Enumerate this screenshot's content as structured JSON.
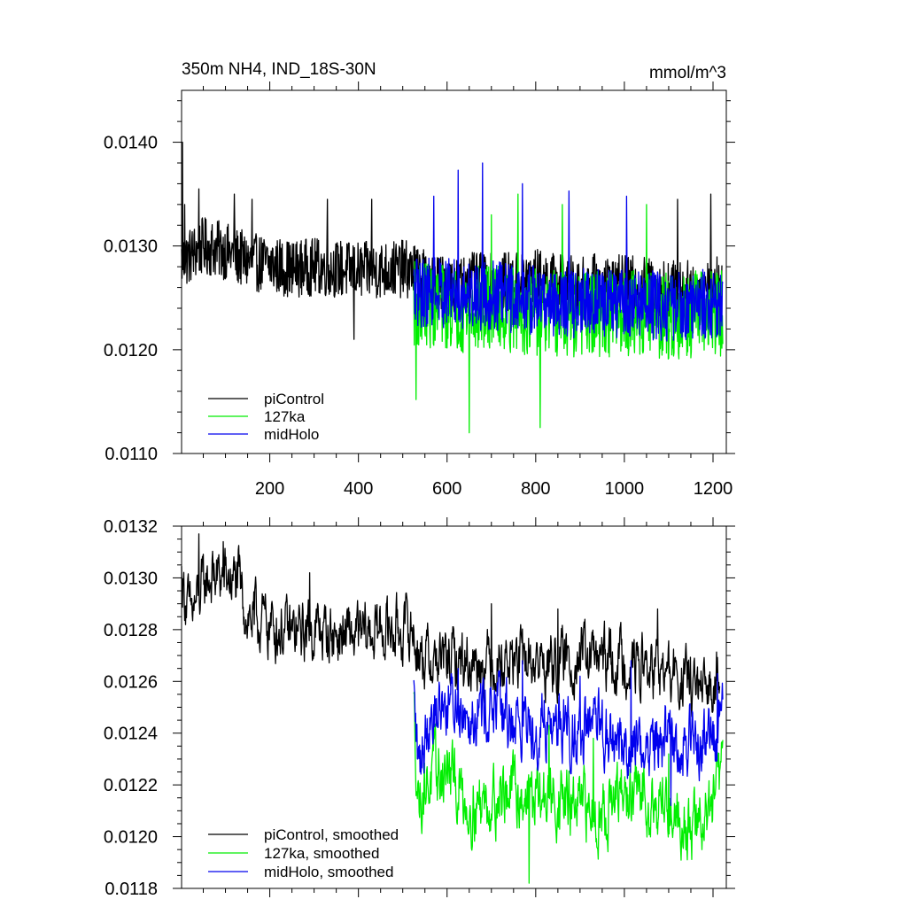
{
  "figure": {
    "title_left": "350m NH4, IND_18S-30N",
    "title_right": "mmol/m^3"
  },
  "colors": {
    "piControl": "#000000",
    "127ka": "#00ee00",
    "midHolo": "#0000ee"
  },
  "chart_data": [
    {
      "type": "line",
      "panel": "top",
      "xlim": [
        1,
        1230
      ],
      "ylim": [
        0.011,
        0.0145
      ],
      "x_ticks": [
        200,
        400,
        600,
        800,
        1000,
        1200
      ],
      "x_tick_labels": [
        "200",
        "400",
        "600",
        "800",
        "1000",
        "1200"
      ],
      "y_ticks": [
        0.011,
        0.012,
        0.013,
        0.014
      ],
      "y_tick_labels": [
        "0.0110",
        "0.0120",
        "0.0130",
        "0.0140"
      ],
      "grid": false,
      "legend_position": "bottom-left",
      "series": [
        {
          "name": "piControl",
          "key": "piControl",
          "x_range": [
            1,
            1220
          ],
          "points": [
            [
              1,
              0.01285
            ],
            [
              50,
              0.013
            ],
            [
              100,
              0.01295
            ],
            [
              150,
              0.01285
            ],
            [
              200,
              0.01282
            ],
            [
              250,
              0.01278
            ],
            [
              300,
              0.0128
            ],
            [
              350,
              0.01278
            ],
            [
              400,
              0.01276
            ],
            [
              450,
              0.01277
            ],
            [
              500,
              0.01278
            ],
            [
              525,
              0.01276
            ],
            [
              550,
              0.01268
            ],
            [
              600,
              0.01262
            ],
            [
              650,
              0.01266
            ],
            [
              700,
              0.01265
            ],
            [
              750,
              0.01266
            ],
            [
              800,
              0.0127
            ],
            [
              850,
              0.01265
            ],
            [
              900,
              0.01262
            ],
            [
              950,
              0.01266
            ],
            [
              1000,
              0.01263
            ],
            [
              1050,
              0.01262
            ],
            [
              1100,
              0.0126
            ],
            [
              1150,
              0.01258
            ],
            [
              1200,
              0.01262
            ],
            [
              1220,
              0.01263
            ]
          ],
          "noise": 0.00028,
          "spikes": [
            [
              3,
              0.014
            ],
            [
              8,
              0.0134
            ],
            [
              40,
              0.01355
            ],
            [
              120,
              0.0135
            ],
            [
              160,
              0.01345
            ],
            [
              250,
              0.01255
            ],
            [
              330,
              0.01345
            ],
            [
              390,
              0.0121
            ],
            [
              430,
              0.01345
            ],
            [
              1120,
              0.01345
            ],
            [
              1195,
              0.0135
            ]
          ]
        },
        {
          "name": "127ka",
          "key": "127ka",
          "x_range": [
            525,
            1222
          ],
          "points": [
            [
              525,
              0.01245
            ],
            [
              600,
              0.01242
            ],
            [
              650,
              0.01238
            ],
            [
              700,
              0.0124
            ],
            [
              800,
              0.01236
            ],
            [
              900,
              0.01232
            ],
            [
              1000,
              0.01236
            ],
            [
              1100,
              0.01232
            ],
            [
              1222,
              0.01236
            ]
          ],
          "noise": 0.00042,
          "spikes": [
            [
              530,
              0.01152
            ],
            [
              650,
              0.0112
            ],
            [
              760,
              0.01127
            ],
            [
              810,
              0.01125
            ],
            [
              860,
              0.0134
            ],
            [
              1050,
              0.0134
            ],
            [
              700,
              0.0133
            ],
            [
              760,
              0.0135
            ]
          ]
        },
        {
          "name": "midHolo",
          "key": "midHolo",
          "x_range": [
            525,
            1222
          ],
          "points": [
            [
              525,
              0.01255
            ],
            [
              600,
              0.01255
            ],
            [
              700,
              0.01252
            ],
            [
              800,
              0.01248
            ],
            [
              900,
              0.01245
            ],
            [
              1000,
              0.01245
            ],
            [
              1100,
              0.01242
            ],
            [
              1222,
              0.01245
            ]
          ],
          "noise": 0.00034,
          "spikes": [
            [
              570,
              0.01348
            ],
            [
              625,
              0.01373
            ],
            [
              680,
              0.0138
            ],
            [
              770,
              0.0136
            ],
            [
              875,
              0.01353
            ],
            [
              1005,
              0.01348
            ]
          ]
        }
      ],
      "legend": [
        "piControl",
        "127ka",
        "midHolo"
      ]
    },
    {
      "type": "line",
      "panel": "bottom",
      "xlim": [
        1,
        1230
      ],
      "ylim": [
        0.0118,
        0.0132
      ],
      "x_ticks": [
        200,
        400,
        600,
        800,
        1000,
        1200
      ],
      "y_ticks": [
        0.0118,
        0.012,
        0.0122,
        0.0124,
        0.0126,
        0.0128,
        0.013,
        0.0132
      ],
      "y_tick_labels": [
        "0.0118",
        "0.0120",
        "0.0122",
        "0.0124",
        "0.0126",
        "0.0128",
        "0.0130",
        "0.0132"
      ],
      "grid": false,
      "legend_position": "bottom-left",
      "series": [
        {
          "name": "piControl, smoothed",
          "key": "piControl",
          "x_range": [
            1,
            1215
          ],
          "points": [
            [
              1,
              0.013
            ],
            [
              20,
              0.01285
            ],
            [
              60,
              0.013
            ],
            [
              100,
              0.013
            ],
            [
              130,
              0.01298
            ],
            [
              150,
              0.01285
            ],
            [
              200,
              0.01282
            ],
            [
              250,
              0.01278
            ],
            [
              300,
              0.0128
            ],
            [
              350,
              0.01278
            ],
            [
              400,
              0.01277
            ],
            [
              450,
              0.0128
            ],
            [
              520,
              0.0128
            ],
            [
              540,
              0.0127
            ],
            [
              580,
              0.01268
            ],
            [
              650,
              0.01268
            ],
            [
              700,
              0.01268
            ],
            [
              760,
              0.01268
            ],
            [
              800,
              0.01267
            ],
            [
              850,
              0.01266
            ],
            [
              900,
              0.0127
            ],
            [
              950,
              0.01268
            ],
            [
              1000,
              0.01268
            ],
            [
              1050,
              0.01265
            ],
            [
              1100,
              0.01262
            ],
            [
              1150,
              0.0126
            ],
            [
              1180,
              0.01252
            ],
            [
              1215,
              0.01268
            ]
          ],
          "noise": 0.0001,
          "spikes": [
            [
              40,
              0.01317
            ],
            [
              95,
              0.01314
            ],
            [
              165,
              0.01282
            ],
            [
              290,
              0.01302
            ],
            [
              465,
              0.01293
            ],
            [
              700,
              0.0129
            ],
            [
              850,
              0.01288
            ],
            [
              1075,
              0.01288
            ]
          ]
        },
        {
          "name": "127ka, smoothed",
          "key": "127ka",
          "x_range": [
            525,
            1222
          ],
          "points": [
            [
              525,
              0.0125
            ],
            [
              535,
              0.01215
            ],
            [
              560,
              0.01222
            ],
            [
              600,
              0.01225
            ],
            [
              650,
              0.01212
            ],
            [
              700,
              0.01215
            ],
            [
              750,
              0.01218
            ],
            [
              800,
              0.01215
            ],
            [
              850,
              0.01215
            ],
            [
              900,
              0.0121
            ],
            [
              950,
              0.0121
            ],
            [
              1000,
              0.01215
            ],
            [
              1050,
              0.01216
            ],
            [
              1100,
              0.01212
            ],
            [
              1150,
              0.01203
            ],
            [
              1200,
              0.01212
            ],
            [
              1222,
              0.01225
            ]
          ],
          "noise": 0.00011,
          "spikes": [
            [
              785,
              0.01182
            ],
            [
              830,
              0.01243
            ],
            [
              930,
              0.01238
            ],
            [
              1100,
              0.01232
            ],
            [
              1175,
              0.01195
            ]
          ]
        },
        {
          "name": "midHolo, smoothed",
          "key": "midHolo",
          "x_range": [
            525,
            1222
          ],
          "points": [
            [
              525,
              0.01255
            ],
            [
              535,
              0.01226
            ],
            [
              560,
              0.01248
            ],
            [
              600,
              0.01252
            ],
            [
              650,
              0.0125
            ],
            [
              700,
              0.0125
            ],
            [
              750,
              0.01245
            ],
            [
              800,
              0.01243
            ],
            [
              850,
              0.01245
            ],
            [
              900,
              0.0124
            ],
            [
              950,
              0.0124
            ],
            [
              1000,
              0.01235
            ],
            [
              1050,
              0.01235
            ],
            [
              1100,
              0.01238
            ],
            [
              1150,
              0.01235
            ],
            [
              1200,
              0.0124
            ],
            [
              1222,
              0.01245
            ]
          ],
          "noise": 0.00011,
          "spikes": [
            [
              625,
              0.01265
            ],
            [
              770,
              0.01268
            ],
            [
              900,
              0.01262
            ],
            [
              1015,
              0.01268
            ],
            [
              1210,
              0.01263
            ],
            [
              1105,
              0.01212
            ]
          ]
        }
      ],
      "legend": [
        "piControl, smoothed",
        "127ka, smoothed",
        "midHolo, smoothed"
      ]
    }
  ]
}
